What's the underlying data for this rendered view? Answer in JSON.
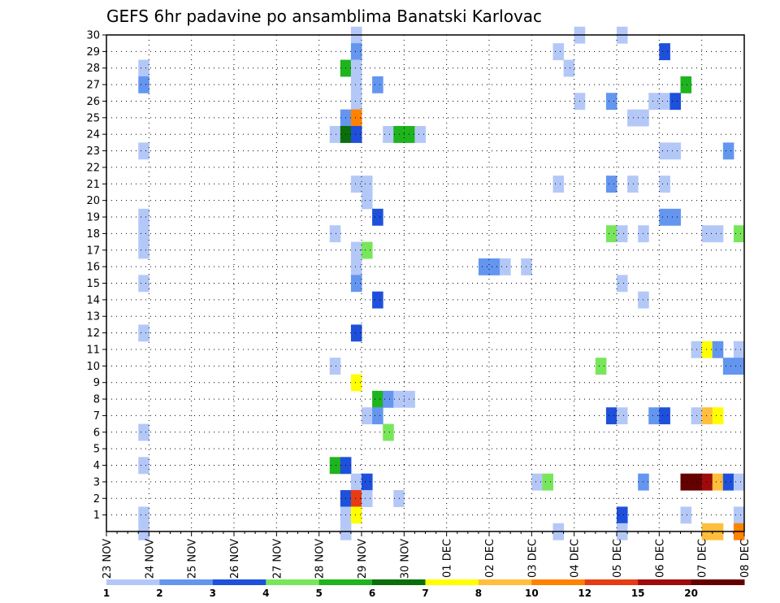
{
  "chart_data": {
    "type": "heatmap",
    "title": "GEFS 6hr padavine po ansamblima Banatski Karlovac",
    "xlabel": "",
    "ylabel": "",
    "x_ticks": [
      "23 NOV",
      "24 NOV",
      "25 NOV",
      "26 NOV",
      "27 NOV",
      "28 NOV",
      "29 NOV",
      "30 NOV",
      "01 DEC",
      "02 DEC",
      "03 DEC",
      "04 DEC",
      "05 DEC",
      "06 DEC",
      "07 DEC",
      "08 DEC"
    ],
    "xlim": [
      "23 NOV",
      "08 DEC"
    ],
    "y_ticks": [
      1,
      2,
      3,
      4,
      5,
      6,
      7,
      8,
      9,
      10,
      11,
      12,
      13,
      14,
      15,
      16,
      17,
      18,
      19,
      20,
      21,
      22,
      23,
      24,
      25,
      26,
      27,
      28,
      29,
      30
    ],
    "ylim": [
      0,
      30
    ],
    "time_step_hours": 6,
    "grid": true,
    "legend": {
      "placement": "bottom",
      "labels": [
        "1",
        "2",
        "3",
        "4",
        "5",
        "6",
        "7",
        "8",
        "10",
        "12",
        "15",
        "20"
      ],
      "colors": [
        "#b4c8f8",
        "#6496f0",
        "#1e50dc",
        "#78e65a",
        "#1eb41e",
        "#0a6e0a",
        "#ffff00",
        "#ffbe3c",
        "#ff8200",
        "#e63c14",
        "#a00a0a",
        "#640000"
      ]
    },
    "cells": [
      {
        "time": "23 NOV 18z",
        "member": 28,
        "level": 1
      },
      {
        "time": "23 NOV 18z",
        "member": 27,
        "level": 2
      },
      {
        "time": "23 NOV 18z",
        "member": 23,
        "level": 1
      },
      {
        "time": "23 NOV 18z",
        "member": 19,
        "level": 1
      },
      {
        "time": "23 NOV 18z",
        "member": 18,
        "level": 1
      },
      {
        "time": "23 NOV 18z",
        "member": 17,
        "level": 1
      },
      {
        "time": "23 NOV 18z",
        "member": 15,
        "level": 1
      },
      {
        "time": "23 NOV 18z",
        "member": 12,
        "level": 1
      },
      {
        "time": "23 NOV 18z",
        "member": 6,
        "level": 1
      },
      {
        "time": "23 NOV 18z",
        "member": 4,
        "level": 1
      },
      {
        "time": "23 NOV 18z",
        "member": 1,
        "level": 1
      },
      {
        "time": "23 NOV 18z",
        "member": 0,
        "level": 1
      },
      {
        "time": "28 NOV 06z",
        "member": 24,
        "level": 1
      },
      {
        "time": "28 NOV 06z",
        "member": 18,
        "level": 1
      },
      {
        "time": "28 NOV 06z",
        "member": 10,
        "level": 1
      },
      {
        "time": "28 NOV 06z",
        "member": 4,
        "level": 5
      },
      {
        "time": "28 NOV 12z",
        "member": 28,
        "level": 5
      },
      {
        "time": "28 NOV 12z",
        "member": 25,
        "level": 2
      },
      {
        "time": "28 NOV 12z",
        "member": 24,
        "level": 6
      },
      {
        "time": "28 NOV 12z",
        "member": 4,
        "level": 3
      },
      {
        "time": "28 NOV 12z",
        "member": 2,
        "level": 3
      },
      {
        "time": "28 NOV 12z",
        "member": 1,
        "level": 1
      },
      {
        "time": "28 NOV 12z",
        "member": 0,
        "level": 1
      },
      {
        "time": "28 NOV 18z",
        "member": 30,
        "level": 1
      },
      {
        "time": "28 NOV 18z",
        "member": 29,
        "level": 2
      },
      {
        "time": "28 NOV 18z",
        "member": 28,
        "level": 1
      },
      {
        "time": "28 NOV 18z",
        "member": 27,
        "level": 1
      },
      {
        "time": "28 NOV 18z",
        "member": 26,
        "level": 1
      },
      {
        "time": "28 NOV 18z",
        "member": 25,
        "level": 9
      },
      {
        "time": "28 NOV 18z",
        "member": 24,
        "level": 3
      },
      {
        "time": "28 NOV 18z",
        "member": 21,
        "level": 1
      },
      {
        "time": "28 NOV 18z",
        "member": 17,
        "level": 1
      },
      {
        "time": "28 NOV 18z",
        "member": 16,
        "level": 1
      },
      {
        "time": "28 NOV 18z",
        "member": 15,
        "level": 2
      },
      {
        "time": "28 NOV 18z",
        "member": 12,
        "level": 3
      },
      {
        "time": "28 NOV 18z",
        "member": 9,
        "level": 7
      },
      {
        "time": "28 NOV 18z",
        "member": 3,
        "level": 1
      },
      {
        "time": "28 NOV 18z",
        "member": 2,
        "level": 10
      },
      {
        "time": "28 NOV 18z",
        "member": 1,
        "level": 7
      },
      {
        "time": "29 NOV 00z",
        "member": 21,
        "level": 1
      },
      {
        "time": "29 NOV 00z",
        "member": 20,
        "level": 1
      },
      {
        "time": "29 NOV 00z",
        "member": 17,
        "level": 4
      },
      {
        "time": "29 NOV 00z",
        "member": 7,
        "level": 1
      },
      {
        "time": "29 NOV 00z",
        "member": 3,
        "level": 3
      },
      {
        "time": "29 NOV 00z",
        "member": 2,
        "level": 1
      },
      {
        "time": "29 NOV 06z",
        "member": 27,
        "level": 2
      },
      {
        "time": "29 NOV 06z",
        "member": 19,
        "level": 3
      },
      {
        "time": "29 NOV 06z",
        "member": 14,
        "level": 3
      },
      {
        "time": "29 NOV 06z",
        "member": 8,
        "level": 5
      },
      {
        "time": "29 NOV 06z",
        "member": 7,
        "level": 2
      },
      {
        "time": "29 NOV 12z",
        "member": 24,
        "level": 1
      },
      {
        "time": "29 NOV 12z",
        "member": 8,
        "level": 2
      },
      {
        "time": "29 NOV 12z",
        "member": 6,
        "level": 4
      },
      {
        "time": "29 NOV 18z",
        "member": 24,
        "level": 5
      },
      {
        "time": "29 NOV 18z",
        "member": 8,
        "level": 1
      },
      {
        "time": "29 NOV 18z",
        "member": 2,
        "level": 1
      },
      {
        "time": "30 NOV 00z",
        "member": 24,
        "level": 5
      },
      {
        "time": "30 NOV 00z",
        "member": 8,
        "level": 1
      },
      {
        "time": "30 NOV 06z",
        "member": 24,
        "level": 1
      },
      {
        "time": "01 DEC 18z",
        "member": 16,
        "level": 2
      },
      {
        "time": "02 DEC 00z",
        "member": 16,
        "level": 2
      },
      {
        "time": "02 DEC 06z",
        "member": 16,
        "level": 1
      },
      {
        "time": "02 DEC 18z",
        "member": 16,
        "level": 1
      },
      {
        "time": "03 DEC 00z",
        "member": 3,
        "level": 1
      },
      {
        "time": "03 DEC 06z",
        "member": 3,
        "level": 4
      },
      {
        "time": "03 DEC 12z",
        "member": 29,
        "level": 1
      },
      {
        "time": "03 DEC 12z",
        "member": 21,
        "level": 1
      },
      {
        "time": "03 DEC 12z",
        "member": 0,
        "level": 1
      },
      {
        "time": "03 DEC 18z",
        "member": 28,
        "level": 1
      },
      {
        "time": "04 DEC 00z",
        "member": 30,
        "level": 1
      },
      {
        "time": "04 DEC 00z",
        "member": 26,
        "level": 1
      },
      {
        "time": "04 DEC 12z",
        "member": 10,
        "level": 4
      },
      {
        "time": "04 DEC 18z",
        "member": 26,
        "level": 2
      },
      {
        "time": "04 DEC 18z",
        "member": 21,
        "level": 2
      },
      {
        "time": "04 DEC 18z",
        "member": 18,
        "level": 4
      },
      {
        "time": "04 DEC 18z",
        "member": 7,
        "level": 3
      },
      {
        "time": "05 DEC 00z",
        "member": 30,
        "level": 1
      },
      {
        "time": "05 DEC 00z",
        "member": 18,
        "level": 1
      },
      {
        "time": "05 DEC 00z",
        "member": 15,
        "level": 1
      },
      {
        "time": "05 DEC 00z",
        "member": 7,
        "level": 1
      },
      {
        "time": "05 DEC 00z",
        "member": 1,
        "level": 3
      },
      {
        "time": "05 DEC 00z",
        "member": 0,
        "level": 1
      },
      {
        "time": "05 DEC 06z",
        "member": 25,
        "level": 1
      },
      {
        "time": "05 DEC 06z",
        "member": 21,
        "level": 1
      },
      {
        "time": "05 DEC 12z",
        "member": 25,
        "level": 1
      },
      {
        "time": "05 DEC 12z",
        "member": 18,
        "level": 1
      },
      {
        "time": "05 DEC 12z",
        "member": 14,
        "level": 1
      },
      {
        "time": "05 DEC 12z",
        "member": 3,
        "level": 2
      },
      {
        "time": "05 DEC 18z",
        "member": 26,
        "level": 1
      },
      {
        "time": "05 DEC 18z",
        "member": 7,
        "level": 2
      },
      {
        "time": "06 DEC 00z",
        "member": 29,
        "level": 3
      },
      {
        "time": "06 DEC 00z",
        "member": 26,
        "level": 1
      },
      {
        "time": "06 DEC 00z",
        "member": 23,
        "level": 1
      },
      {
        "time": "06 DEC 00z",
        "member": 21,
        "level": 1
      },
      {
        "time": "06 DEC 00z",
        "member": 19,
        "level": 2
      },
      {
        "time": "06 DEC 00z",
        "member": 7,
        "level": 3
      },
      {
        "time": "06 DEC 06z",
        "member": 26,
        "level": 3
      },
      {
        "time": "06 DEC 06z",
        "member": 23,
        "level": 1
      },
      {
        "time": "06 DEC 06z",
        "member": 19,
        "level": 2
      },
      {
        "time": "06 DEC 12z",
        "member": 27,
        "level": 5
      },
      {
        "time": "06 DEC 12z",
        "member": 3,
        "level": 12
      },
      {
        "time": "06 DEC 12z",
        "member": 1,
        "level": 1
      },
      {
        "time": "06 DEC 18z",
        "member": 11,
        "level": 1
      },
      {
        "time": "06 DEC 18z",
        "member": 7,
        "level": 1
      },
      {
        "time": "06 DEC 18z",
        "member": 3,
        "level": 12
      },
      {
        "time": "07 DEC 00z",
        "member": 18,
        "level": 1
      },
      {
        "time": "07 DEC 00z",
        "member": 11,
        "level": 7
      },
      {
        "time": "07 DEC 00z",
        "member": 7,
        "level": 8
      },
      {
        "time": "07 DEC 00z",
        "member": 3,
        "level": 11
      },
      {
        "time": "07 DEC 00z",
        "member": 0,
        "level": 8
      },
      {
        "time": "07 DEC 06z",
        "member": 18,
        "level": 1
      },
      {
        "time": "07 DEC 06z",
        "member": 11,
        "level": 2
      },
      {
        "time": "07 DEC 06z",
        "member": 7,
        "level": 7
      },
      {
        "time": "07 DEC 06z",
        "member": 3,
        "level": 8
      },
      {
        "time": "07 DEC 06z",
        "member": 0,
        "level": 8
      },
      {
        "time": "07 DEC 12z",
        "member": 23,
        "level": 2
      },
      {
        "time": "07 DEC 12z",
        "member": 10,
        "level": 2
      },
      {
        "time": "07 DEC 12z",
        "member": 3,
        "level": 3
      },
      {
        "time": "07 DEC 18z",
        "member": 18,
        "level": 4
      },
      {
        "time": "07 DEC 18z",
        "member": 11,
        "level": 1
      },
      {
        "time": "07 DEC 18z",
        "member": 10,
        "level": 2
      },
      {
        "time": "07 DEC 18z",
        "member": 3,
        "level": 1
      },
      {
        "time": "07 DEC 18z",
        "member": 1,
        "level": 1
      },
      {
        "time": "07 DEC 18z",
        "member": 0,
        "level": 9
      }
    ]
  }
}
